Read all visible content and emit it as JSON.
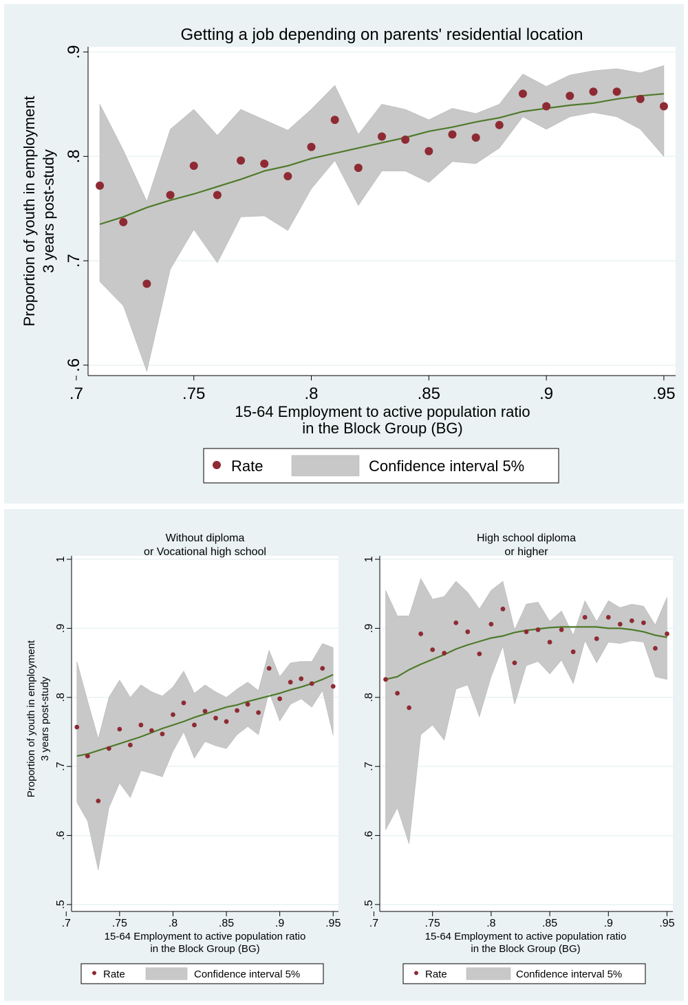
{
  "chart_data": [
    {
      "type": "scatter",
      "title": "Getting a job depending on parents' residential location",
      "xlabel": [
        "15-64 Employment to active population ratio",
        "in the Block Group (BG)"
      ],
      "ylabel": [
        "Proportion of youth in employment",
        "3 years post-study"
      ],
      "xlim": [
        0.705,
        0.955
      ],
      "ylim": [
        0.59,
        0.905
      ],
      "xticks": [
        0.7,
        0.75,
        0.8,
        0.85,
        0.9,
        0.95
      ],
      "xtick_labels": [
        ".7",
        ".75",
        ".8",
        ".85",
        ".9",
        ".95"
      ],
      "yticks": [
        0.6,
        0.7,
        0.8,
        0.9
      ],
      "ytick_labels": [
        ".6",
        ".7",
        ".8",
        ".9"
      ],
      "grid": true,
      "legend": {
        "position": "bottom",
        "rate_label": "Rate",
        "ci_label": "Confidence interval 5%"
      },
      "x": [
        0.71,
        0.72,
        0.73,
        0.74,
        0.75,
        0.76,
        0.77,
        0.78,
        0.79,
        0.8,
        0.81,
        0.82,
        0.83,
        0.84,
        0.85,
        0.86,
        0.87,
        0.88,
        0.89,
        0.9,
        0.91,
        0.92,
        0.93,
        0.94,
        0.95
      ],
      "rate": [
        0.772,
        0.737,
        0.678,
        0.763,
        0.791,
        0.763,
        0.796,
        0.793,
        0.781,
        0.809,
        0.835,
        0.789,
        0.819,
        0.816,
        0.805,
        0.821,
        0.818,
        0.83,
        0.86,
        0.848,
        0.858,
        0.862,
        0.862,
        0.855,
        0.848
      ],
      "ci_low": [
        0.68,
        0.657,
        0.594,
        0.692,
        0.73,
        0.698,
        0.742,
        0.743,
        0.729,
        0.769,
        0.796,
        0.753,
        0.786,
        0.786,
        0.775,
        0.795,
        0.793,
        0.808,
        0.838,
        0.826,
        0.838,
        0.842,
        0.838,
        0.826,
        0.8
      ],
      "ci_high": [
        0.85,
        0.806,
        0.757,
        0.826,
        0.845,
        0.82,
        0.845,
        0.835,
        0.825,
        0.845,
        0.868,
        0.821,
        0.85,
        0.845,
        0.835,
        0.846,
        0.841,
        0.85,
        0.879,
        0.867,
        0.878,
        0.882,
        0.884,
        0.88,
        0.887
      ],
      "fit": [
        0.735,
        0.742,
        0.751,
        0.758,
        0.764,
        0.771,
        0.778,
        0.786,
        0.791,
        0.798,
        0.803,
        0.808,
        0.813,
        0.818,
        0.824,
        0.828,
        0.833,
        0.837,
        0.843,
        0.846,
        0.849,
        0.851,
        0.855,
        0.858,
        0.86
      ]
    },
    {
      "type": "scatter",
      "title": [
        "Without diploma",
        "or Vocational high school"
      ],
      "xlabel": [
        "15-64 Employment to active population ratio",
        "in the Block Group (BG)"
      ],
      "ylabel": [
        "Proportion of youth in employment",
        "3 years post-study"
      ],
      "xlim": [
        0.705,
        0.955
      ],
      "ylim": [
        0.49,
        1.005
      ],
      "xticks": [
        0.7,
        0.75,
        0.8,
        0.85,
        0.9,
        0.95
      ],
      "xtick_labels": [
        ".7",
        ".75",
        ".8",
        ".85",
        ".9",
        ".95"
      ],
      "yticks": [
        0.5,
        0.6,
        0.7,
        0.8,
        0.9,
        1.0
      ],
      "ytick_labels": [
        ".5",
        ".6",
        ".7",
        ".8",
        ".9",
        "1"
      ],
      "grid": true,
      "legend": {
        "position": "bottom",
        "rate_label": "Rate",
        "ci_label": "Confidence interval 5%"
      },
      "x": [
        0.71,
        0.72,
        0.73,
        0.74,
        0.75,
        0.76,
        0.77,
        0.78,
        0.79,
        0.8,
        0.81,
        0.82,
        0.83,
        0.84,
        0.85,
        0.86,
        0.87,
        0.88,
        0.89,
        0.9,
        0.91,
        0.92,
        0.93,
        0.94,
        0.95
      ],
      "rate": [
        0.757,
        0.715,
        0.65,
        0.726,
        0.754,
        0.731,
        0.76,
        0.752,
        0.747,
        0.775,
        0.792,
        0.76,
        0.78,
        0.77,
        0.765,
        0.781,
        0.79,
        0.778,
        0.842,
        0.798,
        0.822,
        0.827,
        0.82,
        0.842,
        0.816
      ],
      "ci_low": [
        0.648,
        0.621,
        0.55,
        0.64,
        0.676,
        0.655,
        0.694,
        0.69,
        0.685,
        0.722,
        0.75,
        0.712,
        0.736,
        0.73,
        0.726,
        0.746,
        0.758,
        0.746,
        0.808,
        0.766,
        0.79,
        0.798,
        0.786,
        0.81,
        0.745
      ],
      "ci_high": [
        0.852,
        0.795,
        0.74,
        0.8,
        0.825,
        0.8,
        0.818,
        0.808,
        0.802,
        0.815,
        0.838,
        0.806,
        0.818,
        0.808,
        0.8,
        0.812,
        0.822,
        0.81,
        0.868,
        0.83,
        0.85,
        0.852,
        0.852,
        0.878,
        0.872
      ],
      "fit": [
        0.715,
        0.718,
        0.723,
        0.728,
        0.733,
        0.738,
        0.743,
        0.749,
        0.755,
        0.76,
        0.765,
        0.771,
        0.776,
        0.781,
        0.786,
        0.789,
        0.794,
        0.798,
        0.802,
        0.806,
        0.811,
        0.815,
        0.82,
        0.826,
        0.833
      ]
    },
    {
      "type": "scatter",
      "title": [
        "High school diploma",
        "or higher"
      ],
      "xlabel": [
        "15-64 Employment to active population ratio",
        "in the Block Group (BG)"
      ],
      "ylabel": [],
      "xlim": [
        0.705,
        0.955
      ],
      "ylim": [
        0.49,
        1.005
      ],
      "xticks": [
        0.7,
        0.75,
        0.8,
        0.85,
        0.9,
        0.95
      ],
      "xtick_labels": [
        ".7",
        ".75",
        ".8",
        ".85",
        ".9",
        ".95"
      ],
      "yticks": [
        0.5,
        0.6,
        0.7,
        0.8,
        0.9,
        1.0
      ],
      "ytick_labels": [
        ".5",
        ".6",
        ".7",
        ".8",
        ".9",
        "1"
      ],
      "grid": true,
      "legend": {
        "position": "bottom",
        "rate_label": "Rate",
        "ci_label": "Confidence interval 5%"
      },
      "x": [
        0.71,
        0.72,
        0.73,
        0.74,
        0.75,
        0.76,
        0.77,
        0.78,
        0.79,
        0.8,
        0.81,
        0.82,
        0.83,
        0.84,
        0.85,
        0.86,
        0.87,
        0.88,
        0.89,
        0.9,
        0.91,
        0.92,
        0.93,
        0.94,
        0.95
      ],
      "rate": [
        0.826,
        0.806,
        0.785,
        0.892,
        0.869,
        0.864,
        0.908,
        0.895,
        0.863,
        0.906,
        0.928,
        0.85,
        0.895,
        0.898,
        0.88,
        0.898,
        0.866,
        0.916,
        0.885,
        0.916,
        0.906,
        0.911,
        0.908,
        0.871,
        0.892
      ],
      "ci_low": [
        0.608,
        0.64,
        0.588,
        0.746,
        0.76,
        0.738,
        0.812,
        0.818,
        0.772,
        0.83,
        0.874,
        0.79,
        0.846,
        0.852,
        0.834,
        0.854,
        0.82,
        0.882,
        0.85,
        0.88,
        0.878,
        0.882,
        0.88,
        0.83,
        0.826
      ],
      "ci_high": [
        0.955,
        0.918,
        0.918,
        0.972,
        0.942,
        0.946,
        0.968,
        0.952,
        0.928,
        0.955,
        0.968,
        0.898,
        0.935,
        0.938,
        0.91,
        0.925,
        0.89,
        0.94,
        0.91,
        0.94,
        0.93,
        0.935,
        0.932,
        0.905,
        0.945
      ],
      "fit": [
        0.826,
        0.83,
        0.84,
        0.848,
        0.855,
        0.862,
        0.87,
        0.876,
        0.881,
        0.886,
        0.889,
        0.894,
        0.897,
        0.899,
        0.901,
        0.902,
        0.902,
        0.902,
        0.902,
        0.9,
        0.9,
        0.898,
        0.895,
        0.89,
        0.887
      ]
    }
  ]
}
